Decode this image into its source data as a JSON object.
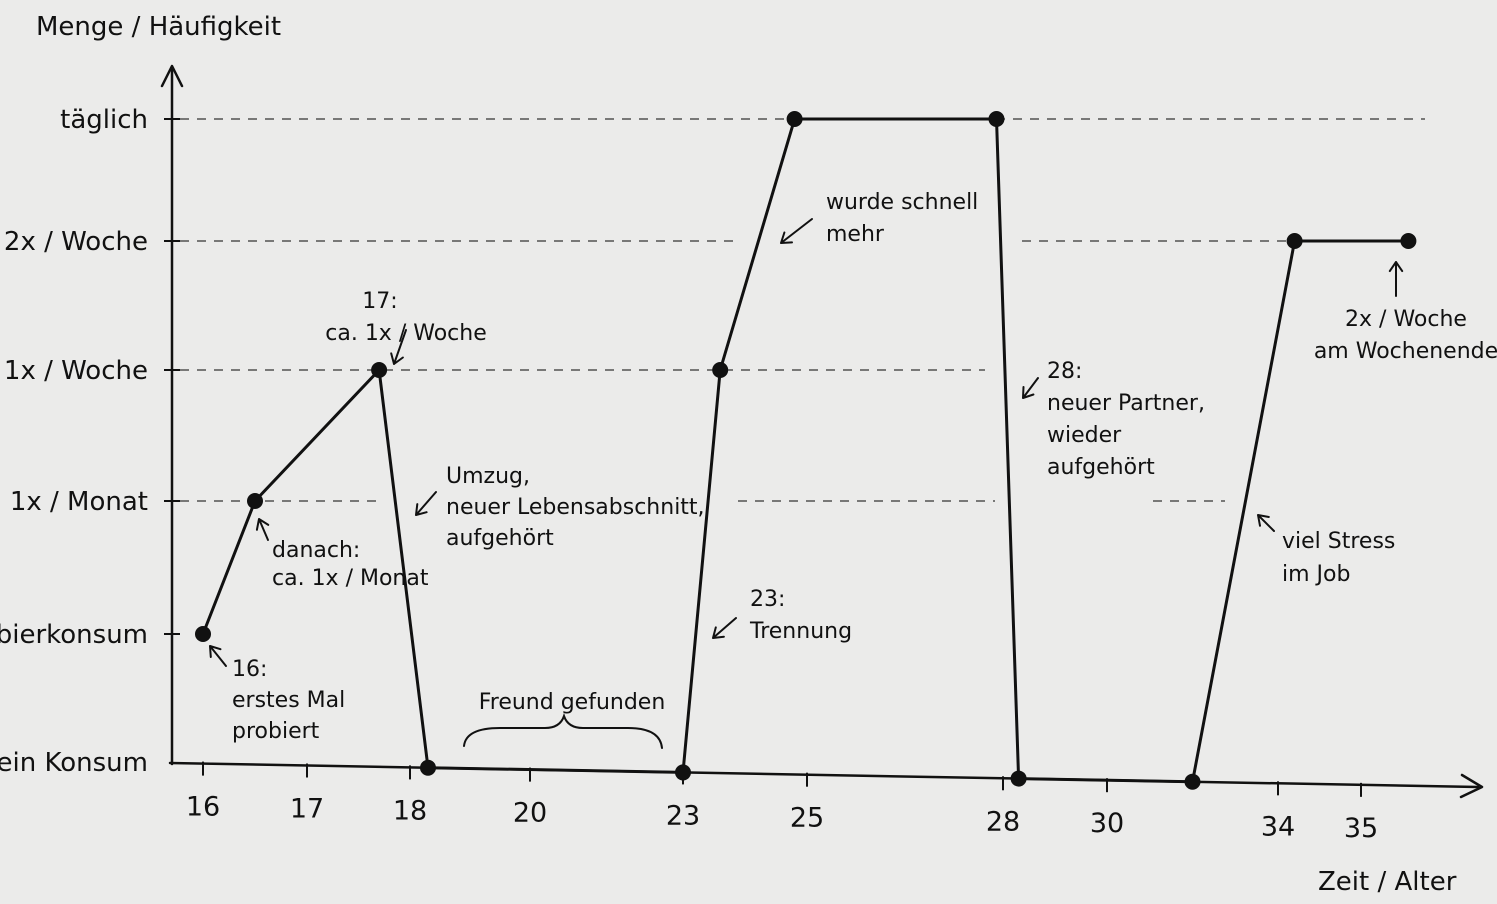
{
  "chart_data": {
    "type": "line",
    "ylabel": "Menge / Häufigkeit",
    "xlabel": "Zeit / Alter",
    "y_levels": [
      "kein Konsum",
      "Probierkonsum",
      "1x / Monat",
      "1x / Woche",
      "2x / Woche",
      "täglich"
    ],
    "x_ticks": [
      "16",
      "17",
      "18",
      "20",
      "23",
      "25",
      "28",
      "30",
      "34",
      "35"
    ],
    "grid": "dashed",
    "series": [
      {
        "values": [
          {
            "x": 16,
            "y": "Probierkonsum"
          },
          {
            "x": 16.5,
            "y": "1x / Monat"
          },
          {
            "x": 17.7,
            "y": "1x / Woche"
          },
          {
            "x": 18.3,
            "y": "kein Konsum"
          },
          {
            "x": 23,
            "y": "kein Konsum"
          },
          {
            "x": 23.6,
            "y": "1x / Woche"
          },
          {
            "x": 24.8,
            "y": "täglich"
          },
          {
            "x": 27.9,
            "y": "täglich"
          },
          {
            "x": 28.3,
            "y": "kein Konsum"
          },
          {
            "x": 32,
            "y": "kein Konsum"
          },
          {
            "x": 34.2,
            "y": "2x / Woche"
          },
          {
            "x": 35.6,
            "y": "2x / Woche"
          }
        ]
      }
    ],
    "annotations": [
      {
        "text": [
          "16:",
          "erstes Mal",
          "probiert"
        ]
      },
      {
        "text": [
          "danach:",
          "ca. 1x / Monat"
        ]
      },
      {
        "text": [
          "17:",
          "ca. 1x / Woche"
        ]
      },
      {
        "text": [
          "Umzug,",
          "neuer Lebensabschnitt,",
          "aufgehört"
        ]
      },
      {
        "text": [
          "Freund gefunden"
        ]
      },
      {
        "text": [
          "23:",
          "Trennung"
        ]
      },
      {
        "text": [
          "wurde schnell",
          "mehr"
        ]
      },
      {
        "text": [
          "28:",
          "neuer Partner,",
          "wieder",
          "aufgehört"
        ]
      },
      {
        "text": [
          "viel Stress",
          "im Job"
        ]
      },
      {
        "text": [
          "2x / Woche",
          "am Wochenende"
        ]
      }
    ]
  }
}
